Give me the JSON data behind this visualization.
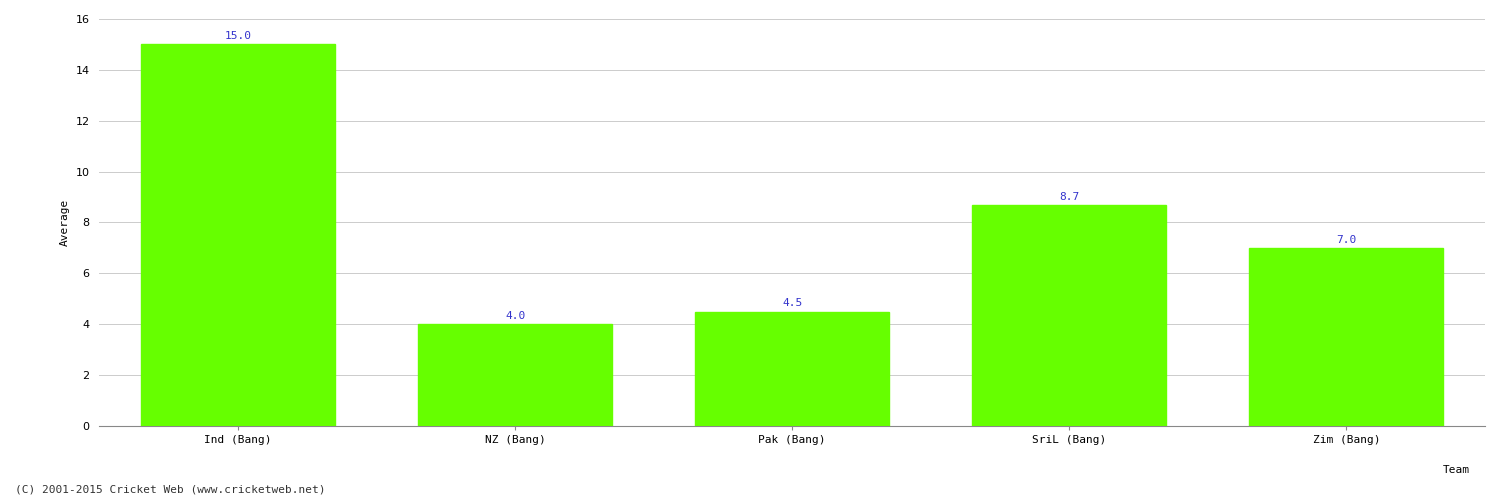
{
  "categories": [
    "Ind (Bang)",
    "NZ (Bang)",
    "Pak (Bang)",
    "SriL (Bang)",
    "Zim (Bang)"
  ],
  "values": [
    15.0,
    4.0,
    4.5,
    8.7,
    7.0
  ],
  "bar_color": "#66ff00",
  "bar_edge_color": "#66ff00",
  "value_color": "#3333cc",
  "xlabel": "Team",
  "ylabel": "Average",
  "ylim": [
    0,
    16
  ],
  "yticks": [
    0,
    2,
    4,
    6,
    8,
    10,
    12,
    14,
    16
  ],
  "background_color": "#ffffff",
  "grid_color": "#cccccc",
  "footer": "(C) 2001-2015 Cricket Web (www.cricketweb.net)",
  "value_fontsize": 8,
  "label_fontsize": 8,
  "footer_fontsize": 8,
  "axis_label_fontsize": 8,
  "bar_width": 0.7
}
